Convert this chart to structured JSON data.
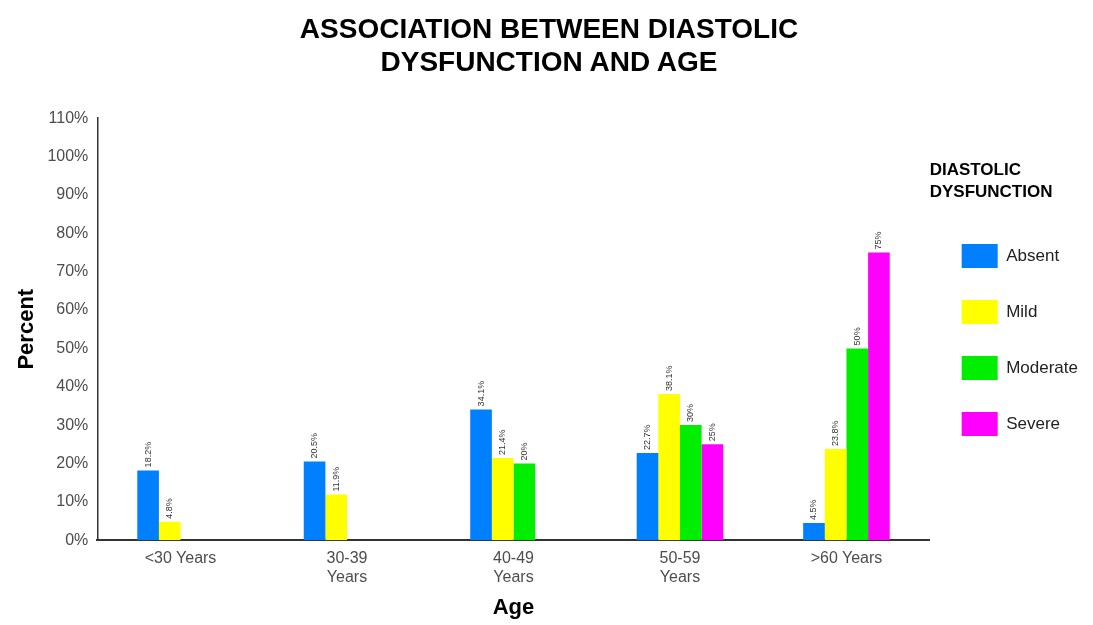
{
  "chart_data": {
    "type": "bar",
    "title": "ASSOCIATION BETWEEN DIASTOLIC DYSFUNCTION AND AGE",
    "xlabel": "Age",
    "ylabel": "Percent",
    "legend_title": "DIASTOLIC DYSFUNCTION",
    "legend": "right",
    "categories": [
      "<30 Years",
      "30-39 Years",
      "40-49 Years",
      "50-59 Years",
      ">60 Years"
    ],
    "series": [
      {
        "name": "Absent",
        "color": "#0080ff",
        "values": [
          18.2,
          20.5,
          34.1,
          22.7,
          4.5
        ],
        "value_labels": [
          "18.2%",
          "20.5%",
          "34.1%",
          "22.7%",
          "4.5%"
        ]
      },
      {
        "name": "Mild",
        "color": "#ffff00",
        "values": [
          4.8,
          11.9,
          21.4,
          38.1,
          23.8
        ],
        "value_labels": [
          "4.8%",
          "11.9%",
          "21.4%",
          "38.1%",
          "23.8%"
        ]
      },
      {
        "name": "Moderate",
        "color": "#00ee00",
        "values": [
          null,
          null,
          20,
          30,
          50
        ],
        "value_labels": [
          null,
          null,
          "20%",
          "30%",
          "50%"
        ]
      },
      {
        "name": "Severe",
        "color": "#ff00ff",
        "values": [
          null,
          null,
          null,
          25,
          75
        ],
        "value_labels": [
          null,
          null,
          null,
          "25%",
          "75%"
        ]
      }
    ],
    "ylim": [
      0,
      110
    ],
    "yticks": [
      {
        "value": 0,
        "label": "0%"
      },
      {
        "value": 10,
        "label": "10%"
      },
      {
        "value": 20,
        "label": "20%"
      },
      {
        "value": 30,
        "label": "30%"
      },
      {
        "value": 40,
        "label": "40%"
      },
      {
        "value": 50,
        "label": "50%"
      },
      {
        "value": 60,
        "label": "60%"
      },
      {
        "value": 70,
        "label": "70%"
      },
      {
        "value": 80,
        "label": "80%"
      },
      {
        "value": 90,
        "label": "90%"
      },
      {
        "value": 100,
        "label": "100%"
      },
      {
        "value": 110,
        "label": "110%"
      }
    ],
    "grid": false
  }
}
